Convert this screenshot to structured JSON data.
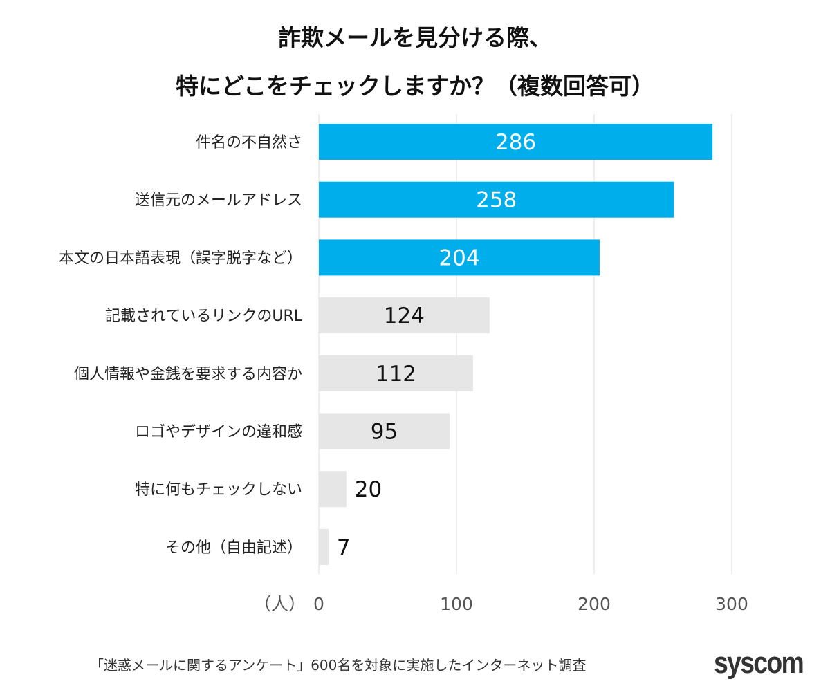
{
  "chart_data": {
    "type": "bar",
    "orientation": "horizontal",
    "title_lines": [
      "詐欺メールを見分ける際、",
      "特にどこをチェックしますか？（複数回答可）"
    ],
    "categories": [
      "件名の不自然さ",
      "送信元のメールアドレス",
      "本文の日本語表現（誤字脱字など）",
      "記載されているリンクのURL",
      "個人情報や金銭を要求する内容か",
      "ロゴやデザインの違和感",
      "特に何もチェックしない",
      "その他（自由記述）"
    ],
    "values": [
      286,
      258,
      204,
      124,
      112,
      95,
      20,
      7
    ],
    "highlight_count": 3,
    "colors": {
      "highlight": "#00AEEB",
      "normal": "#E6E6E6",
      "grid": "#DDDDDD"
    },
    "xlim": [
      0,
      300
    ],
    "xticks": [
      "0",
      "100",
      "200",
      "300"
    ],
    "xlabel": "（人）",
    "grid": true
  },
  "footer": {
    "source": "「迷惑メールに関するアンケート」600名を対象に実施したインターネット調査",
    "logo": "syscom"
  }
}
